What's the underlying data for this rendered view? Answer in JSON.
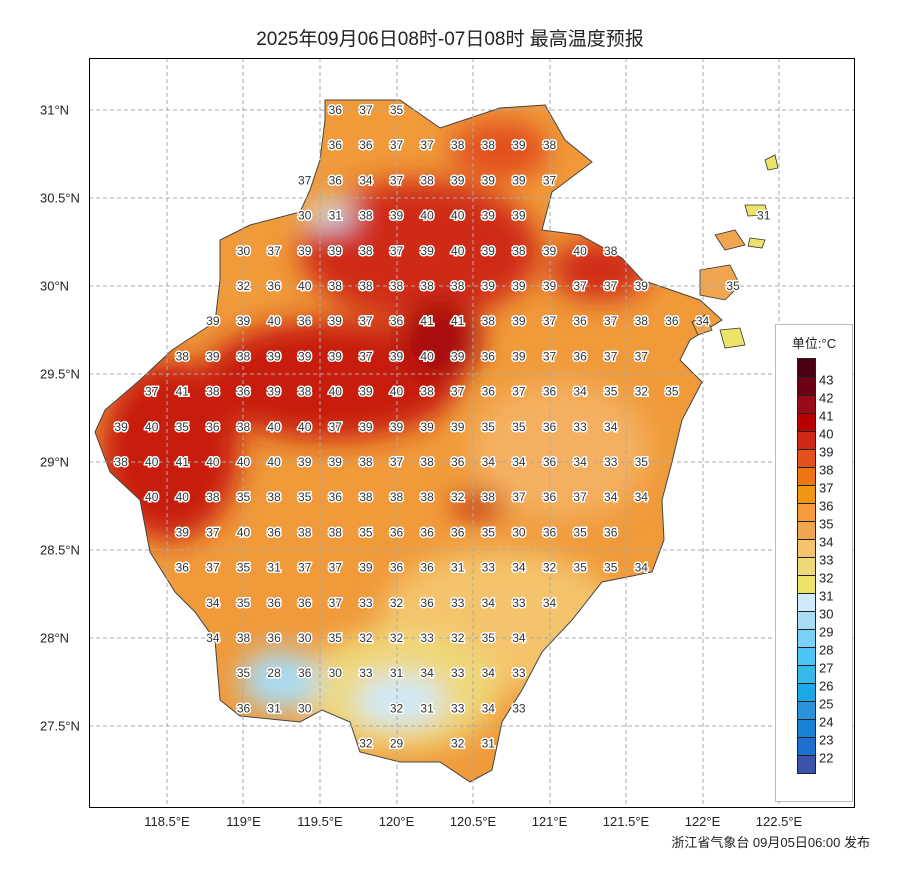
{
  "title": "2025年09月06日08时-07日08时 最高温度预报",
  "footer": "浙江省气象台 09月05日06:00 发布",
  "x_ticks": [
    "118.5°E",
    "119°E",
    "119.5°E",
    "120°E",
    "120.5°E",
    "121°E",
    "121.5°E",
    "122°E",
    "122.5°E"
  ],
  "y_ticks": [
    "31°N",
    "30.5°N",
    "30°N",
    "29.5°N",
    "29°N",
    "28.5°N",
    "28°N",
    "27.5°N"
  ],
  "legend": {
    "title": "单位:°C",
    "labels": [
      "43",
      "42",
      "41",
      "40",
      "39",
      "38",
      "37",
      "36",
      "35",
      "34",
      "33",
      "32",
      "31",
      "30",
      "29",
      "28",
      "27",
      "26",
      "25",
      "24",
      "23",
      "22"
    ],
    "colors": [
      "#4a0010",
      "#6e0014",
      "#9a0a18",
      "#b80000",
      "#cf2a14",
      "#e2501e",
      "#ec7614",
      "#f09614",
      "#f69a3e",
      "#f0a650",
      "#f4c46c",
      "#efd87a",
      "#ece46a",
      "#cfeafb",
      "#a8dcf5",
      "#7ad0f5",
      "#4cc4f4",
      "#36b8e8",
      "#1aa8e8",
      "#2a93dc",
      "#1a82d4",
      "#1f6fd0",
      "#3a55a8"
    ]
  },
  "temperature_grid": [
    {
      "lat": 31.0,
      "lon0": 119.6,
      "values": [
        36,
        37,
        35
      ]
    },
    {
      "lat": 30.8,
      "lon0": 119.6,
      "values": [
        36,
        36,
        37,
        37,
        38,
        38,
        39,
        38
      ]
    },
    {
      "lat": 30.6,
      "lon0": 119.4,
      "values": [
        37,
        36,
        34,
        37,
        38,
        39,
        39,
        39,
        37
      ]
    },
    {
      "lat": 30.4,
      "lon0": 119.4,
      "values": [
        30,
        31,
        38,
        39,
        40,
        40,
        39,
        39
      ]
    },
    {
      "lat": 30.4,
      "lon0": 122.4,
      "values": [
        31
      ]
    },
    {
      "lat": 30.2,
      "lon0": 119.0,
      "values": [
        30,
        37,
        39,
        39,
        38,
        37,
        39,
        40,
        39,
        38,
        39,
        40,
        38
      ]
    },
    {
      "lat": 30.0,
      "lon0": 119.0,
      "values": [
        32,
        36,
        40,
        38,
        38,
        38,
        38,
        38,
        39,
        39,
        39,
        37,
        37,
        39
      ]
    },
    {
      "lat": 30.0,
      "lon0": 122.2,
      "values": [
        35
      ]
    },
    {
      "lat": 29.8,
      "lon0": 118.8,
      "values": [
        39,
        39,
        40,
        36,
        39,
        37,
        36,
        41,
        41,
        38,
        39,
        37,
        36,
        37,
        38,
        36,
        34
      ]
    },
    {
      "lat": 29.6,
      "lon0": 118.6,
      "values": [
        38,
        39,
        38,
        39,
        39,
        39,
        37,
        39,
        40,
        39,
        36,
        39,
        37,
        36,
        37,
        37
      ]
    },
    {
      "lat": 29.4,
      "lon0": 118.4,
      "values": [
        37,
        41,
        38,
        36,
        39,
        38,
        40,
        39,
        40,
        38,
        37,
        36,
        37,
        36,
        34,
        35,
        32,
        35
      ]
    },
    {
      "lat": 29.2,
      "lon0": 118.2,
      "values": [
        39,
        40,
        35,
        36,
        38,
        40,
        40,
        37,
        39,
        39,
        39,
        39,
        35,
        35,
        36,
        33,
        34
      ]
    },
    {
      "lat": 29.0,
      "lon0": 118.2,
      "values": [
        38,
        40,
        41,
        40,
        40,
        40,
        39,
        39,
        38,
        37,
        38,
        36,
        34,
        34,
        36,
        34,
        33,
        35
      ]
    },
    {
      "lat": 28.8,
      "lon0": 118.4,
      "values": [
        40,
        40,
        38,
        35,
        38,
        35,
        36,
        38,
        38,
        38,
        32,
        38,
        37,
        36,
        37,
        34,
        34
      ]
    },
    {
      "lat": 28.6,
      "lon0": 118.6,
      "values": [
        39,
        37,
        40,
        36,
        38,
        38,
        35,
        36,
        36,
        36,
        35,
        30,
        36,
        35,
        36
      ]
    },
    {
      "lat": 28.4,
      "lon0": 118.6,
      "values": [
        36,
        37,
        35,
        31,
        37,
        37,
        39,
        36,
        36,
        31,
        33,
        34,
        32,
        35,
        35,
        34
      ]
    },
    {
      "lat": 28.2,
      "lon0": 118.8,
      "values": [
        34,
        35,
        36,
        36,
        37,
        33,
        32,
        36,
        33,
        34,
        33,
        34
      ]
    },
    {
      "lat": 28.0,
      "lon0": 118.8,
      "values": [
        34,
        38,
        36,
        30,
        35,
        32,
        32,
        33,
        32,
        35,
        34
      ]
    },
    {
      "lat": 27.8,
      "lon0": 119.0,
      "values": [
        35,
        28,
        36,
        30,
        33,
        31,
        34,
        33,
        34,
        33
      ]
    },
    {
      "lat": 27.6,
      "lon0": 119.0,
      "values": [
        36,
        31,
        30,
        null,
        null,
        32,
        31,
        33,
        34,
        33
      ]
    },
    {
      "lat": 27.4,
      "lon0": 119.8,
      "values": [
        32,
        29,
        null,
        32,
        31
      ]
    }
  ]
}
